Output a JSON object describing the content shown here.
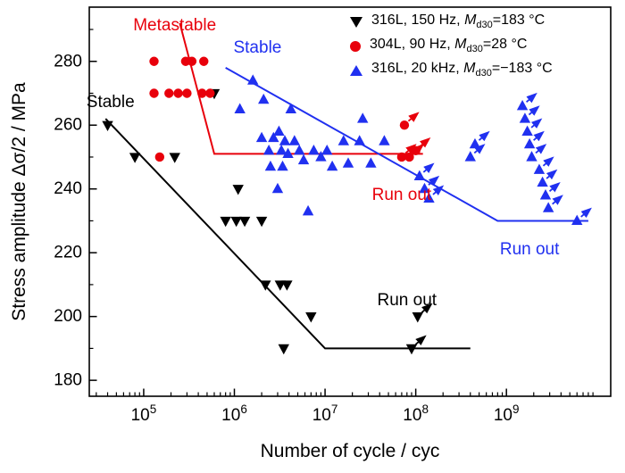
{
  "legend": {
    "items": [
      {
        "marker": "triangle-down",
        "color": "#000000",
        "pre": "316L, 150 Hz, ",
        "var": "M",
        "sub": "d30",
        "post": "=183 °C"
      },
      {
        "marker": "circle",
        "color": "#e8000b",
        "pre": "304L, 90 Hz, ",
        "var": "M",
        "sub": "d30",
        "post": "=28 °C"
      },
      {
        "marker": "triangle-up",
        "color": "#2030f0",
        "pre": "316L, 20 kHz, ",
        "var": "M",
        "sub": "d30",
        "post": "=−183 °C"
      }
    ]
  },
  "chart_data": {
    "type": "scatter",
    "title": "",
    "xlabel": "Number of cycle / cyc",
    "ylabel": "Stress amplitude Δσ/2 / MPa",
    "x_scale": "log",
    "xlim_log10": [
      4.4,
      10.15
    ],
    "ylim": [
      175,
      297
    ],
    "xticks_log10": [
      5,
      6,
      7,
      8,
      9
    ],
    "yticks": [
      180,
      200,
      220,
      240,
      260,
      280
    ],
    "grid": false,
    "legend_position": "top-right-inside",
    "series": [
      {
        "name": "316L, 150 Hz, Md30=183 °C",
        "marker": "triangle-down",
        "color": "#000000",
        "points_x_y_runout": [
          [
            40000.0,
            260
          ],
          [
            80000.0,
            250
          ],
          [
            220000.0,
            250
          ],
          [
            600000.0,
            270
          ],
          [
            1100000.0,
            240
          ],
          [
            800000.0,
            230
          ],
          [
            1050000.0,
            230
          ],
          [
            1300000.0,
            230
          ],
          [
            2000000.0,
            230
          ],
          [
            2200000.0,
            210
          ],
          [
            3200000.0,
            210
          ],
          [
            3800000.0,
            210
          ],
          [
            3500000.0,
            190
          ],
          [
            7000000.0,
            200
          ],
          [
            90000000.0,
            190,
            1
          ],
          [
            105000000.0,
            200,
            1
          ]
        ],
        "trend_line": [
          [
            38000.0,
            262
          ],
          [
            10000000.0,
            190
          ],
          [
            400000000.0,
            190
          ]
        ]
      },
      {
        "name": "304L, 90 Hz, Md30=28 °C",
        "marker": "circle",
        "color": "#e8000b",
        "points_x_y_runout": [
          [
            130000.0,
            280
          ],
          [
            290000.0,
            280
          ],
          [
            340000.0,
            280
          ],
          [
            460000.0,
            280
          ],
          [
            130000.0,
            270
          ],
          [
            190000.0,
            270
          ],
          [
            240000.0,
            270
          ],
          [
            300000.0,
            270
          ],
          [
            440000.0,
            270
          ],
          [
            540000.0,
            270
          ],
          [
            150000.0,
            250
          ],
          [
            75000000.0,
            260,
            1
          ],
          [
            70000000.0,
            250,
            1
          ],
          [
            85000000.0,
            250,
            1
          ],
          [
            100000000.0,
            252,
            1
          ]
        ],
        "trend_line": [
          [
            250000.0,
            292
          ],
          [
            600000.0,
            251
          ],
          [
            120000000.0,
            251
          ]
        ]
      },
      {
        "name": "316L, 20 kHz, Md30=−183 °C",
        "marker": "triangle-up",
        "color": "#2030f0",
        "points_x_y_runout": [
          [
            1600000.0,
            274
          ],
          [
            1150000.0,
            265
          ],
          [
            2100000.0,
            268
          ],
          [
            4200000.0,
            265
          ],
          [
            2000000.0,
            256
          ],
          [
            2400000.0,
            252
          ],
          [
            2700000.0,
            256
          ],
          [
            2500000.0,
            247
          ],
          [
            3100000.0,
            258
          ],
          [
            3300000.0,
            252
          ],
          [
            3600000.0,
            255
          ],
          [
            3400000.0,
            247
          ],
          [
            3900000.0,
            251
          ],
          [
            4600000.0,
            255
          ],
          [
            5200000.0,
            252
          ],
          [
            5800000.0,
            249
          ],
          [
            3000000.0,
            240
          ],
          [
            6500000.0,
            233
          ],
          [
            7500000.0,
            252
          ],
          [
            9000000.0,
            250
          ],
          [
            10500000.0,
            252
          ],
          [
            12000000.0,
            247
          ],
          [
            16000000.0,
            255
          ],
          [
            18000000.0,
            248
          ],
          [
            26000000.0,
            262
          ],
          [
            24000000.0,
            255
          ],
          [
            32000000.0,
            248
          ],
          [
            45000000.0,
            255
          ],
          [
            110000000.0,
            244,
            1
          ],
          [
            125000000.0,
            240,
            1
          ],
          [
            140000000.0,
            237,
            1
          ],
          [
            400000000.0,
            250,
            1
          ],
          [
            450000000.0,
            254,
            1
          ],
          [
            1500000000.0,
            266,
            1
          ],
          [
            1600000000.0,
            262,
            1
          ],
          [
            1700000000.0,
            258,
            1
          ],
          [
            1800000000.0,
            254,
            1
          ],
          [
            1900000000.0,
            250,
            1
          ],
          [
            2300000000.0,
            246,
            1
          ],
          [
            2500000000.0,
            242,
            1
          ],
          [
            2700000000.0,
            238,
            1
          ],
          [
            2900000000.0,
            234,
            1
          ],
          [
            6000000000.0,
            230,
            1
          ]
        ],
        "trend_line": [
          [
            800000.0,
            278
          ],
          [
            800000000.0,
            230
          ],
          [
            8000000000.0,
            230
          ]
        ]
      }
    ],
    "annotations": [
      {
        "text": "Metastable",
        "x": 220000.0,
        "y": 291,
        "color": "#e8000b"
      },
      {
        "text": "Stable",
        "x": 1800000.0,
        "y": 284,
        "color": "#2030f0"
      },
      {
        "text": "Stable",
        "x": 43000.0,
        "y": 267,
        "color": "#000000"
      },
      {
        "text": "Run out",
        "x": 70000000.0,
        "y": 238,
        "color": "#e8000b"
      },
      {
        "text": "Run out",
        "x": 1800000000.0,
        "y": 221,
        "color": "#2030f0"
      },
      {
        "text": "Run out",
        "x": 80000000.0,
        "y": 205,
        "color": "#000000"
      }
    ]
  }
}
